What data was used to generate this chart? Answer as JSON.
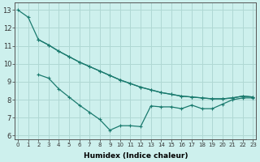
{
  "xlabel": "Humidex (Indice chaleur)",
  "background_color": "#cdf0ed",
  "grid_color": "#b0d8d4",
  "line_color": "#1a7a6e",
  "xlim": [
    -0.3,
    23.3
  ],
  "ylim": [
    5.8,
    13.4
  ],
  "xticks": [
    0,
    1,
    2,
    3,
    4,
    5,
    6,
    7,
    8,
    9,
    10,
    11,
    12,
    13,
    14,
    15,
    16,
    17,
    18,
    19,
    20,
    21,
    22,
    23
  ],
  "yticks": [
    6,
    7,
    8,
    9,
    10,
    11,
    12,
    13
  ],
  "series": [
    {
      "x": [
        0,
        1,
        2,
        3,
        4,
        5,
        6,
        7,
        8,
        9,
        10,
        11,
        12,
        13,
        14,
        15,
        16,
        17,
        18,
        19,
        20,
        21,
        22,
        23
      ],
      "y": [
        13.0,
        12.6,
        11.35,
        11.05,
        10.7,
        10.4,
        10.1,
        9.85,
        9.6,
        9.35,
        9.1,
        8.9,
        8.7,
        8.55,
        8.4,
        8.3,
        8.2,
        8.15,
        8.1,
        8.05,
        8.05,
        8.1,
        8.2,
        8.15
      ]
    },
    {
      "x": [
        2,
        3,
        4,
        5,
        6,
        7,
        8,
        9,
        10,
        11,
        12,
        13,
        14,
        15,
        16,
        17,
        18,
        19,
        20,
        21,
        22,
        23
      ],
      "y": [
        11.35,
        11.05,
        10.7,
        10.4,
        10.1,
        9.85,
        9.6,
        9.35,
        9.1,
        8.9,
        8.7,
        8.55,
        8.4,
        8.3,
        8.2,
        8.15,
        8.1,
        8.05,
        8.05,
        8.1,
        8.2,
        8.15
      ]
    },
    {
      "x": [
        2,
        3,
        4,
        5,
        6,
        7,
        8,
        9,
        10,
        11,
        12,
        13,
        14,
        15,
        16,
        17,
        18,
        19,
        20,
        21,
        22,
        23
      ],
      "y": [
        9.4,
        9.2,
        8.6,
        8.15,
        7.7,
        7.3,
        6.9,
        6.3,
        6.55,
        6.55,
        6.5,
        7.65,
        7.6,
        7.6,
        7.5,
        7.7,
        7.5,
        7.5,
        7.75,
        8.0,
        8.1,
        8.1
      ]
    }
  ]
}
